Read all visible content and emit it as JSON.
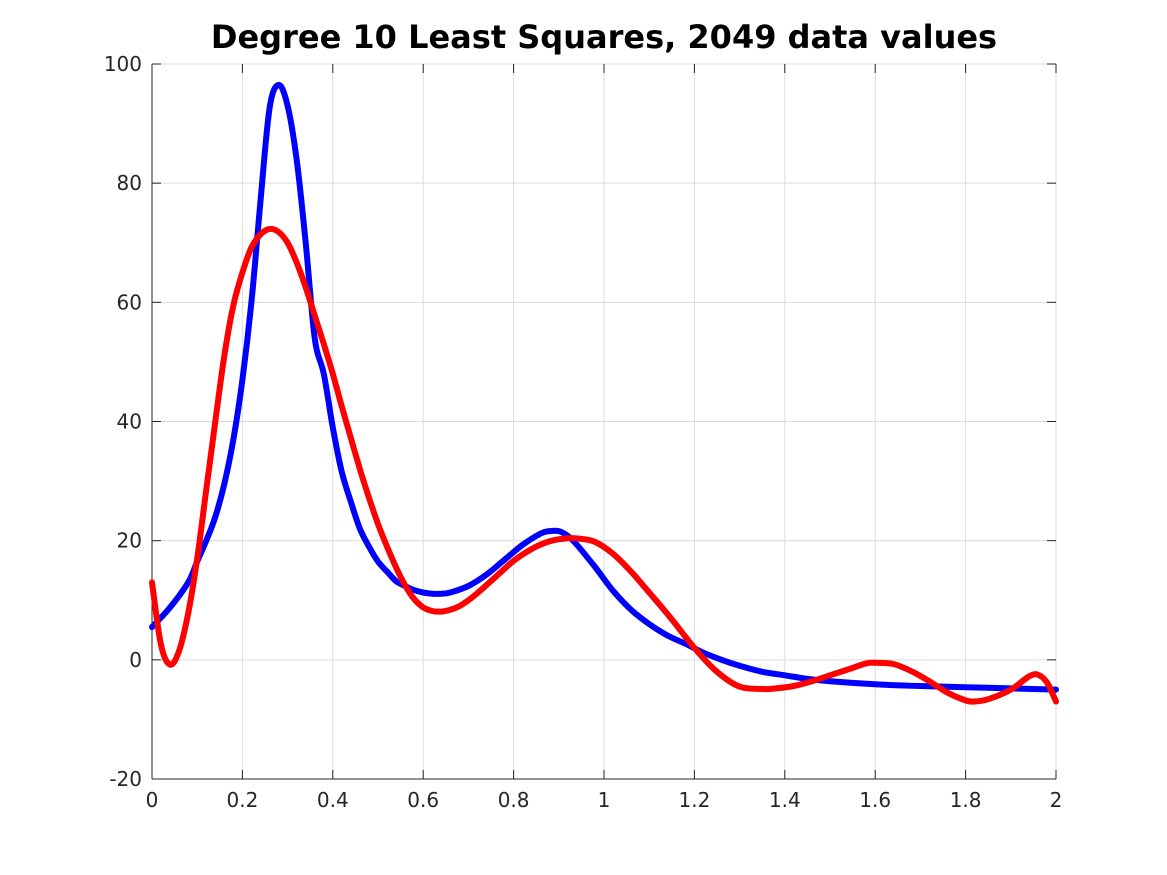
{
  "chart_data": {
    "type": "line",
    "title": "Degree 10 Least Squares, 2049 data values",
    "xlabel": "",
    "ylabel": "",
    "xlim": [
      0,
      2
    ],
    "ylim": [
      -20,
      100
    ],
    "x_ticks": [
      0,
      0.2,
      0.4,
      0.6,
      0.8,
      1,
      1.2,
      1.4,
      1.6,
      1.8,
      2
    ],
    "x_tick_labels": [
      "0",
      "0.2",
      "0.4",
      "0.6",
      "0.8",
      "1",
      "1.2",
      "1.4",
      "1.6",
      "1.8",
      "2"
    ],
    "y_ticks": [
      -20,
      0,
      20,
      40,
      60,
      80,
      100
    ],
    "y_tick_labels": [
      "-20",
      "0",
      "20",
      "40",
      "60",
      "80",
      "100"
    ],
    "grid": true,
    "series": [
      {
        "color": "#0000ff",
        "x": [
          0,
          0.04,
          0.08,
          0.1,
          0.12,
          0.14,
          0.16,
          0.18,
          0.2,
          0.22,
          0.24,
          0.26,
          0.28,
          0.3,
          0.32,
          0.34,
          0.36,
          0.38,
          0.4,
          0.42,
          0.44,
          0.46,
          0.48,
          0.5,
          0.52,
          0.54,
          0.56,
          0.58,
          0.6,
          0.62,
          0.64,
          0.66,
          0.7,
          0.74,
          0.78,
          0.82,
          0.86,
          0.88,
          0.9,
          0.92,
          0.94,
          0.98,
          1.02,
          1.06,
          1.1,
          1.14,
          1.18,
          1.22,
          1.26,
          1.3,
          1.35,
          1.4,
          1.45,
          1.5,
          1.6,
          1.7,
          1.8,
          1.9,
          2
        ],
        "y": [
          5.5,
          8.8,
          13,
          16.5,
          20,
          24,
          29.5,
          37,
          47,
          60,
          77,
          92.5,
          96.5,
          93,
          84,
          70,
          54,
          48,
          39,
          31.5,
          26.5,
          22,
          19,
          16.5,
          14.8,
          13.2,
          12.4,
          11.7,
          11.3,
          11.1,
          11.1,
          11.3,
          12.4,
          14.3,
          16.8,
          19.3,
          21.2,
          21.6,
          21.6,
          20.8,
          19.3,
          15.6,
          11.6,
          8.4,
          6,
          4.1,
          2.7,
          1.2,
          0,
          -1,
          -2,
          -2.6,
          -3.2,
          -3.6,
          -4.1,
          -4.4,
          -4.6,
          -4.8,
          -5
        ]
      },
      {
        "color": "#ff0000",
        "x": [
          0,
          0.02,
          0.04,
          0.06,
          0.08,
          0.1,
          0.12,
          0.14,
          0.16,
          0.18,
          0.2,
          0.22,
          0.24,
          0.26,
          0.28,
          0.3,
          0.32,
          0.34,
          0.36,
          0.38,
          0.4,
          0.42,
          0.44,
          0.46,
          0.48,
          0.5,
          0.52,
          0.54,
          0.56,
          0.58,
          0.6,
          0.62,
          0.64,
          0.66,
          0.68,
          0.7,
          0.72,
          0.76,
          0.8,
          0.84,
          0.88,
          0.92,
          0.95,
          0.98,
          1.02,
          1.06,
          1.1,
          1.15,
          1.2,
          1.25,
          1.3,
          1.35,
          1.38,
          1.42,
          1.46,
          1.5,
          1.54,
          1.58,
          1.6,
          1.64,
          1.68,
          1.72,
          1.76,
          1.8,
          1.82,
          1.85,
          1.9,
          1.94,
          1.96,
          1.98,
          2
        ],
        "y": [
          13,
          2.5,
          -0.8,
          1.5,
          7.8,
          17,
          28.5,
          40,
          51,
          59.5,
          65,
          69.2,
          71.4,
          72.3,
          71.8,
          70,
          66.7,
          62.5,
          57.8,
          53,
          48,
          42.5,
          37.2,
          32,
          27.2,
          22.8,
          19,
          15.5,
          12.5,
          10.2,
          8.8,
          8.2,
          8.1,
          8.4,
          9,
          10,
          11.2,
          13.9,
          16.6,
          18.6,
          19.9,
          20.4,
          20.3,
          19.8,
          17.8,
          14.8,
          11.3,
          6.8,
          2,
          -2,
          -4.5,
          -4.9,
          -4.8,
          -4.4,
          -3.6,
          -2.6,
          -1.6,
          -0.6,
          -0.5,
          -0.7,
          -1.9,
          -3.6,
          -5.5,
          -6.8,
          -7,
          -6.6,
          -5,
          -2.8,
          -2.5,
          -3.8,
          -7
        ]
      }
    ]
  }
}
